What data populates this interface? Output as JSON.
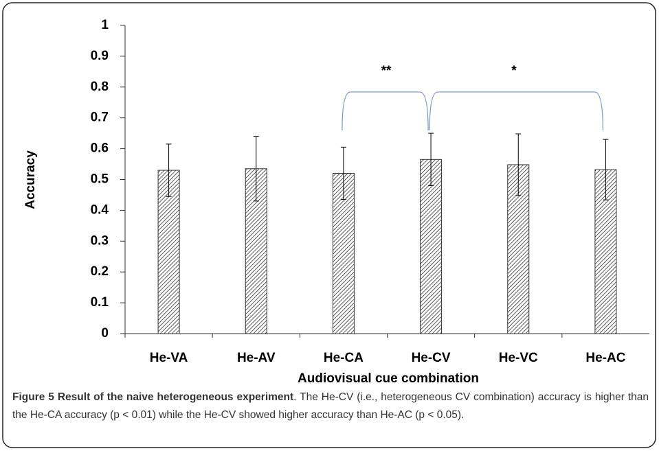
{
  "chart_data": {
    "type": "bar",
    "y_label": "Accuracy",
    "x_label": "Audiovisual cue combination",
    "categories": [
      "He-VA",
      "He-AV",
      "He-CA",
      "He-CV",
      "He-VC",
      "He-AC"
    ],
    "values": [
      0.53,
      0.535,
      0.52,
      0.565,
      0.548,
      0.532
    ],
    "errors": [
      0.085,
      0.105,
      0.085,
      0.085,
      0.1,
      0.098
    ],
    "color": "#333333",
    "ylim": [
      0,
      1
    ],
    "yticks": [
      0,
      0.1,
      0.2,
      0.3,
      0.4,
      0.5,
      0.6,
      0.7,
      0.8,
      0.9,
      1
    ],
    "annotations": [
      "**",
      "*"
    ],
    "bracket_color": "#7f9fc4"
  },
  "caption": {
    "label": "Figure 5",
    "title": "Result of the naive heterogeneous experiment",
    "text": ". The He-CV (i.e., heterogeneous CV combination) accuracy is higher than the He-CA accuracy (p < 0.01) while the He-CV showed higher accuracy than He-AC (p < 0.05)."
  }
}
